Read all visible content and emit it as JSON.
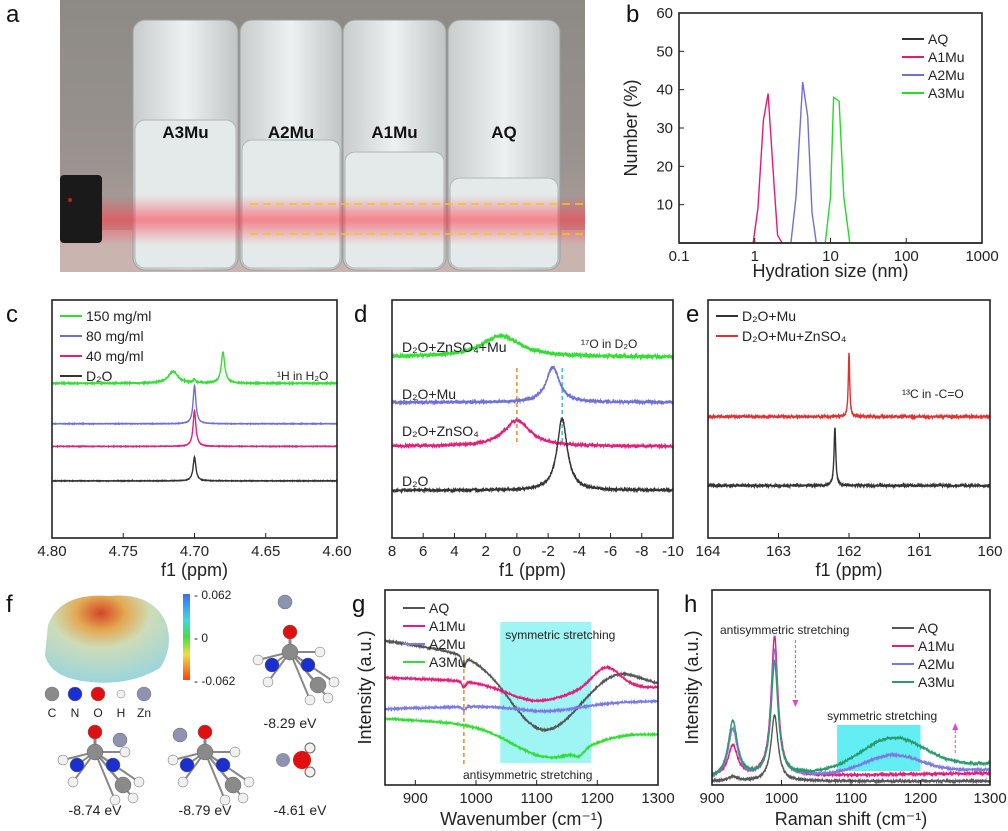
{
  "panel_labels": [
    "a",
    "b",
    "c",
    "d",
    "e",
    "f",
    "g",
    "h"
  ],
  "photo": {
    "vial_labels": [
      "A3Mu",
      "A2Mu",
      "A1Mu",
      "AQ"
    ],
    "laser_color": "#ff3040",
    "guide_line_color": "#f5c518"
  },
  "esp": {
    "colorbar_labels": [
      "- 0.062",
      "- 0",
      "- -0.062"
    ],
    "atoms": [
      {
        "symbol": "C",
        "color": "#8a8a8a"
      },
      {
        "symbol": "N",
        "color": "#1a2fd0"
      },
      {
        "symbol": "O",
        "color": "#e01010"
      },
      {
        "symbol": "H",
        "color": "#f0f0f0"
      },
      {
        "symbol": "Zn",
        "color": "#8d93b0"
      }
    ],
    "energies": [
      "-8.29 eV",
      "-8.74 eV",
      "-8.79 eV",
      "-4.61 eV"
    ]
  },
  "chart_data": [
    {
      "id": "b",
      "type": "line",
      "xscale": "log",
      "xlabel": "Hydration size (nm)",
      "ylabel": "Number (%)",
      "xlim": [
        0.1,
        1000
      ],
      "ylim": [
        0,
        60
      ],
      "xticks": [
        0.1,
        1,
        10,
        100,
        1000
      ],
      "xtick_labels": [
        "0.1",
        "1",
        "10",
        "100",
        "1000"
      ],
      "yticks": [
        10,
        20,
        30,
        40,
        50,
        60
      ],
      "ytick_labels": [
        "10",
        "20",
        "30",
        "40",
        "50",
        "60"
      ],
      "legend_position": "top-right",
      "series": [
        {
          "name": "AQ",
          "color": "#333333",
          "x": [
            0.1,
            1000
          ],
          "y": [
            0,
            0
          ]
        },
        {
          "name": "A1Mu",
          "color": "#e6197a",
          "x": [
            0.95,
            1.1,
            1.3,
            1.5,
            1.8,
            2.0,
            2.3
          ],
          "y": [
            0,
            9,
            32,
            39,
            15,
            2,
            0
          ]
        },
        {
          "name": "A2Mu",
          "color": "#6f6fd8",
          "x": [
            3.0,
            3.5,
            4.3,
            5.0,
            5.7,
            6.5
          ],
          "y": [
            0,
            12,
            42,
            33,
            8,
            0
          ]
        },
        {
          "name": "A3Mu",
          "color": "#22dd22",
          "x": [
            8.5,
            10,
            11,
            13,
            15,
            18
          ],
          "y": [
            0,
            12,
            38,
            37,
            12,
            0
          ]
        }
      ]
    },
    {
      "id": "c",
      "type": "line",
      "xlabel": "f1 (ppm)",
      "ylabel": "",
      "xlim": [
        4.8,
        4.6
      ],
      "ylim": [
        0,
        10
      ],
      "xticks": [
        4.8,
        4.75,
        4.7,
        4.65,
        4.6
      ],
      "xtick_labels": [
        "4.80",
        "4.75",
        "4.70",
        "4.65",
        "4.60"
      ],
      "annotation": "¹H in H₂O",
      "legend_position": "top-left",
      "series": [
        {
          "name": "150 mg/ml",
          "color": "#33dd33",
          "baseline": [
            6.5,
            6.5
          ],
          "noise": 0.02,
          "peaks": [
            {
              "c": 4.68,
              "h": 1.3,
              "w": 0.0015
            },
            {
              "c": 4.715,
              "h": 0.5,
              "w": 0.004
            },
            {
              "c": 4.7,
              "h": 0.15,
              "w": 0.001
            }
          ]
        },
        {
          "name": "80  mg/ml",
          "color": "#6f6fd8",
          "baseline": [
            4.8,
            4.8
          ],
          "noise": 0.01,
          "peaks": [
            {
              "c": 4.7,
              "h": 1.6,
              "w": 0.0012
            }
          ]
        },
        {
          "name": "40  mg/ml",
          "color": "#e0207a",
          "baseline": [
            3.85,
            3.85
          ],
          "noise": 0.01,
          "peaks": [
            {
              "c": 4.7,
              "h": 1.5,
              "w": 0.0012
            }
          ]
        },
        {
          "name": "D₂O",
          "color": "#333333",
          "baseline": [
            2.4,
            2.4
          ],
          "noise": 0.01,
          "peaks": [
            {
              "c": 4.7,
              "h": 1.0,
              "w": 0.0012
            }
          ]
        }
      ]
    },
    {
      "id": "d",
      "type": "line",
      "xlabel": "f1 (ppm)",
      "ylabel": "",
      "xlim": [
        8,
        -10
      ],
      "ylim": [
        0,
        10
      ],
      "xticks": [
        8,
        6,
        4,
        2,
        0,
        -2,
        -4,
        -6,
        -8,
        -10
      ],
      "xtick_labels": [
        "8",
        "6",
        "4",
        "2",
        "0",
        "-2",
        "-4",
        "-6",
        "-8",
        "-10"
      ],
      "annotation": "¹⁷O in D₂O",
      "reference_lines": [
        {
          "x": 0,
          "color": "#f08a20"
        },
        {
          "x": -2.9,
          "color": "#30c8e0"
        }
      ],
      "series": [
        {
          "name": "D₂O+ZnSO₄+Mu",
          "color": "#33dd33",
          "baseline": [
            7.6,
            7.6
          ],
          "noise": 0.08,
          "peaks": [
            {
              "c": 1.0,
              "h": 0.9,
              "w": 1.5
            }
          ]
        },
        {
          "name": "D₂O+Mu",
          "color": "#6f6fd8",
          "baseline": [
            5.7,
            5.7
          ],
          "noise": 0.06,
          "peaks": [
            {
              "c": -2.3,
              "h": 1.5,
              "w": 0.5
            }
          ]
        },
        {
          "name": "D₂O+ZnSO₄",
          "color": "#e0207a",
          "baseline": [
            3.85,
            3.85
          ],
          "noise": 0.06,
          "peaks": [
            {
              "c": 0,
              "h": 1.1,
              "w": 1.0
            }
          ]
        },
        {
          "name": "D₂O",
          "color": "#333333",
          "baseline": [
            2.0,
            2.0
          ],
          "noise": 0.05,
          "peaks": [
            {
              "c": -2.9,
              "h": 3.0,
              "w": 0.4
            }
          ]
        }
      ]
    },
    {
      "id": "e",
      "type": "line",
      "xlabel": "f1 (ppm)",
      "ylabel": "",
      "xlim": [
        164,
        160
      ],
      "ylim": [
        0,
        10
      ],
      "xticks": [
        164,
        163,
        162,
        161,
        160
      ],
      "xtick_labels": [
        "164",
        "163",
        "162",
        "161",
        "160"
      ],
      "annotation": "¹³C in -C=O",
      "legend_position": "top-left",
      "series": [
        {
          "name": "D₂O+Mu",
          "color": "#333333",
          "baseline": [
            2.2,
            2.2
          ],
          "noise": 0.05,
          "peaks": [
            {
              "c": 162.2,
              "h": 2.45,
              "w": 0.015
            }
          ]
        },
        {
          "name": "D₂O+Mu+ZnSO₄",
          "color": "#e03030",
          "baseline": [
            5.1,
            5.1
          ],
          "noise": 0.05,
          "peaks": [
            {
              "c": 162.0,
              "h": 2.7,
              "w": 0.012
            }
          ]
        }
      ]
    },
    {
      "id": "g",
      "type": "line",
      "xlabel": "Wavenumber (cm⁻¹)",
      "ylabel": "Intensity (a.u.)",
      "xlim": [
        850,
        1300
      ],
      "ylim": [
        0,
        10
      ],
      "xticks": [
        900,
        1000,
        1100,
        1200,
        1300
      ],
      "xtick_labels": [
        "900",
        "1000",
        "1100",
        "1200",
        "1300"
      ],
      "highlight_band": {
        "x": [
          1040,
          1190
        ],
        "label": "symmetric stretching",
        "color": "#7ff0f0"
      },
      "annotation": "antisymmetric stretching",
      "reference_lines": [
        {
          "x": 980,
          "color": "#f08a20"
        }
      ],
      "legend_position": "top-left",
      "series": [
        {
          "name": "AQ",
          "color": "#555555",
          "baseline": [
            7.4,
            5.2
          ],
          "noise": 0.03,
          "gauss": true,
          "peaks": [
            {
              "c": 1110,
              "h": -3.3,
              "w": 55
            },
            {
              "c": 980,
              "h": -0.5,
              "w": 3
            },
            {
              "c": 1235,
              "h": 0.4,
              "w": 30
            }
          ]
        },
        {
          "name": "A1Mu",
          "color": "#e0207a",
          "baseline": [
            5.5,
            5.0
          ],
          "noise": 0.03,
          "gauss": true,
          "peaks": [
            {
              "c": 1100,
              "h": -0.9,
              "w": 50
            },
            {
              "c": 1215,
              "h": 1.0,
              "w": 22
            },
            {
              "c": 980,
              "h": -0.3,
              "w": 3
            }
          ]
        },
        {
          "name": "A2Mu",
          "color": "#7a7ae0",
          "baseline": [
            3.9,
            4.3
          ],
          "noise": 0.03,
          "gauss": true,
          "peaks": [
            {
              "c": 1120,
              "h": -0.35,
              "w": 50
            },
            {
              "c": 980,
              "h": -0.15,
              "w": 3
            }
          ]
        },
        {
          "name": "A3Mu",
          "color": "#33dd33",
          "baseline": [
            3.4,
            2.6
          ],
          "noise": 0.03,
          "gauss": true,
          "peaks": [
            {
              "c": 1120,
              "h": -1.5,
              "w": 60
            },
            {
              "c": 1170,
              "h": -0.3,
              "w": 8
            }
          ]
        }
      ]
    },
    {
      "id": "h",
      "type": "line",
      "xlabel": "Raman shift (cm⁻¹)",
      "ylabel": "Intensity (a.u.)",
      "xlim": [
        900,
        1300
      ],
      "ylim": [
        0,
        10
      ],
      "xticks": [
        900,
        1000,
        1100,
        1200,
        1300
      ],
      "xtick_labels": [
        "900",
        "1000",
        "1100",
        "1200",
        "1300"
      ],
      "highlight_band": {
        "x": [
          1080,
          1200
        ],
        "label": "symmetric stretching",
        "color": "#2fe8ef"
      },
      "annotation": "antisymmetric stretching",
      "arrows": [
        {
          "x": 1020,
          "direction": "down",
          "color": "#e040e0"
        },
        {
          "x": 1250,
          "direction": "up",
          "color": "#e040e0"
        }
      ],
      "legend_position": "top-right",
      "series": [
        {
          "name": "AQ",
          "color": "#555555",
          "baseline": [
            0.2,
            0.2
          ],
          "noise": 0.05,
          "peaks": [
            {
              "c": 990,
              "h": 3.4,
              "w": 6
            },
            {
              "c": 930,
              "h": 0.2,
              "w": 8
            }
          ]
        },
        {
          "name": "A1Mu",
          "color": "#e0207a",
          "baseline": [
            0.4,
            0.6
          ],
          "noise": 0.05,
          "peaks": [
            {
              "c": 930,
              "h": 1.6,
              "w": 8
            },
            {
              "c": 990,
              "h": 7.2,
              "w": 6
            }
          ]
        },
        {
          "name": "A2Mu",
          "color": "#7a7ae0",
          "baseline": [
            0.3,
            0.8
          ],
          "noise": 0.05,
          "peaks": [
            {
              "c": 930,
              "h": 2.5,
              "w": 8
            },
            {
              "c": 990,
              "h": 6.5,
              "w": 6
            },
            {
              "c": 1160,
              "h": 0.9,
              "w": 40,
              "g": true
            }
          ]
        },
        {
          "name": "A3Mu",
          "color": "#2a9a6a",
          "baseline": [
            0.3,
            1.1
          ],
          "noise": 0.05,
          "peaks": [
            {
              "c": 930,
              "h": 2.9,
              "w": 8
            },
            {
              "c": 990,
              "h": 5.8,
              "w": 6
            },
            {
              "c": 1160,
              "h": 1.6,
              "w": 45,
              "g": true
            }
          ]
        }
      ]
    }
  ]
}
